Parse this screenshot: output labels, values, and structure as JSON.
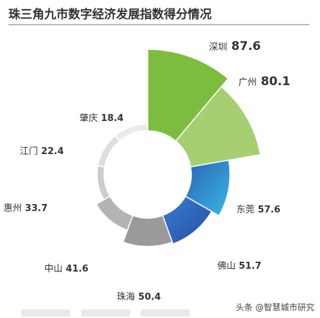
{
  "title": "珠三角九市数字经济发展指数得分情况",
  "watermark": "头条 @智慧城市研究",
  "chart_data": {
    "type": "pie",
    "subtype": "nightingale-rose (radius proportional to value, donut hole)",
    "title": "珠三角九市数字经济发展指数得分情况",
    "categories": [
      "深圳",
      "广州",
      "东莞",
      "佛山",
      "珠海",
      "中山",
      "惠州",
      "江门",
      "肇庆"
    ],
    "values": [
      87.6,
      80.1,
      57.6,
      51.7,
      50.4,
      41.6,
      33.7,
      22.4,
      18.4
    ],
    "labels": [
      "87.6",
      "80.1",
      "57.6",
      "51.7",
      "50.4",
      "41.6",
      "33.7",
      "22.4",
      "18.4"
    ],
    "colors": [
      "#7cbd3f",
      "#a6cf72",
      "#2a86c8",
      "#2f64b8",
      "#9a9a9a",
      "#b4b4b4",
      "#cdcdcd",
      "#dedede",
      "#ebebeb"
    ]
  }
}
